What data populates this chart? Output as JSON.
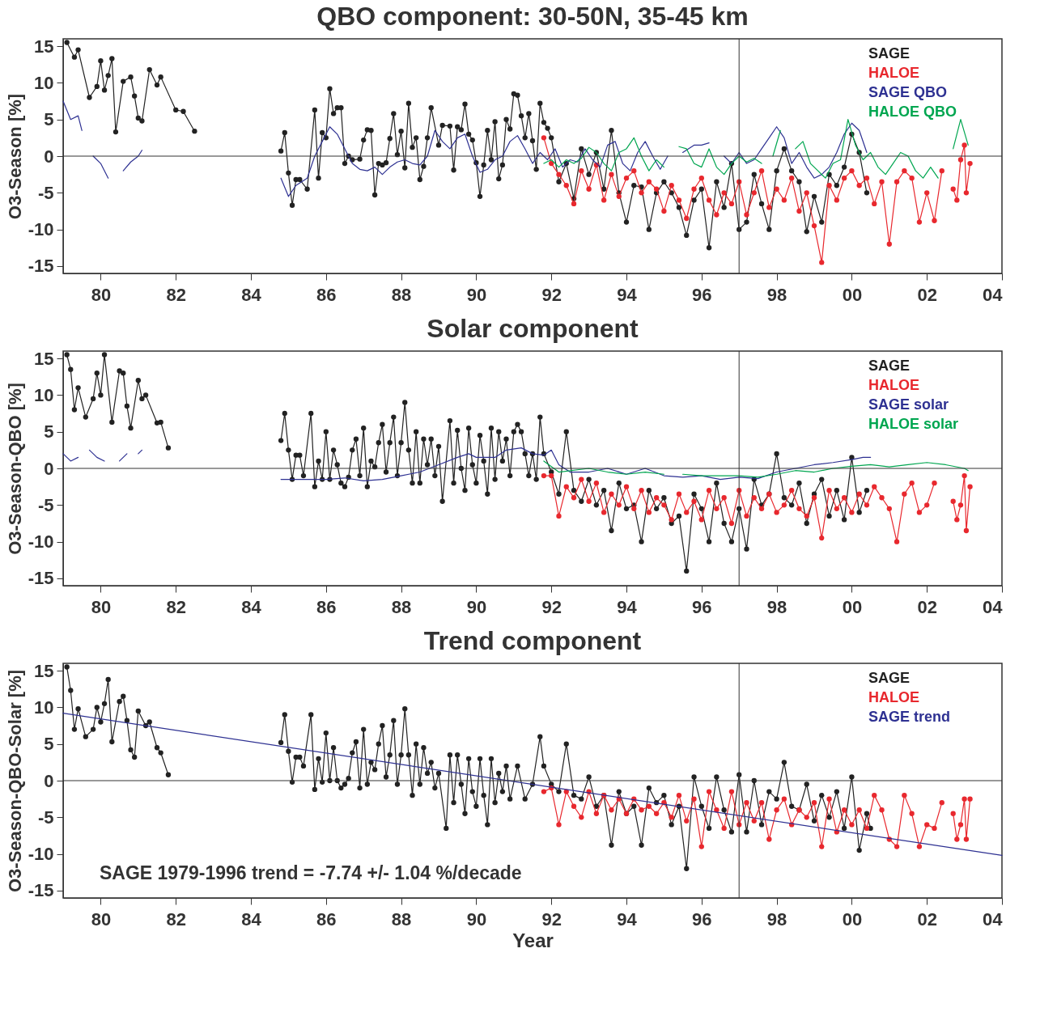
{
  "chart_data": [
    {
      "type": "line",
      "title": "QBO component: 30-50N, 35-45 km",
      "ylabel": "O3-Season [%]",
      "xlim": [
        1979,
        2004
      ],
      "xticks": [
        {
          "value": 1980,
          "label": "80"
        },
        {
          "value": 1982,
          "label": "82"
        },
        {
          "value": 1984,
          "label": "84"
        },
        {
          "value": 1986,
          "label": "86"
        },
        {
          "value": 1988,
          "label": "88"
        },
        {
          "value": 1990,
          "label": "90"
        },
        {
          "value": 1992,
          "label": "92"
        },
        {
          "value": 1994,
          "label": "94"
        },
        {
          "value": 1996,
          "label": "96"
        },
        {
          "value": 1998,
          "label": "98"
        },
        {
          "value": 2000,
          "label": "00"
        },
        {
          "value": 2002,
          "label": "02"
        },
        {
          "value": 2004,
          "label": "04"
        }
      ],
      "ylim": [
        -16,
        16
      ],
      "yticks": [
        -15,
        -10,
        -5,
        0,
        5,
        10,
        15
      ],
      "legend": "top right",
      "marker": "circle",
      "ref_lines": [
        {
          "axis": "y",
          "value": 0
        },
        {
          "axis": "x",
          "value": 1997
        }
      ],
      "series": [
        {
          "name": "SAGE",
          "color": "#222222",
          "x": [
            1979.1,
            1979.3,
            1979.4,
            1979.7,
            1979.9,
            1980.0,
            1980.1,
            1980.2,
            1980.3,
            1980.4,
            1980.6,
            1980.8,
            1980.9,
            1981.0,
            1981.1,
            1981.3,
            1981.5,
            1981.6,
            1982.0,
            1982.2,
            1982.5,
            1983.5,
            1984.8,
            1984.9,
            1985.0,
            1985.1,
            1985.2,
            1985.3,
            1985.5,
            1985.7,
            1985.8,
            1985.9,
            1986.0,
            1986.1,
            1986.2,
            1986.3,
            1986.4,
            1986.5,
            1986.6,
            1986.7,
            1986.9,
            1987.0,
            1987.1,
            1987.2,
            1987.3,
            1987.4,
            1987.5,
            1987.6,
            1987.7,
            1987.8,
            1987.9,
            1988.0,
            1988.1,
            1988.2,
            1988.3,
            1988.4,
            1988.5,
            1988.6,
            1988.7,
            1988.8,
            1989.0,
            1989.1,
            1989.3,
            1989.4,
            1989.5,
            1989.6,
            1989.7,
            1989.8,
            1989.9,
            1990.0,
            1990.1,
            1990.2,
            1990.3,
            1990.4,
            1990.5,
            1990.6,
            1990.7,
            1990.8,
            1990.9,
            1991.0,
            1991.1,
            1991.2,
            1991.3,
            1991.4,
            1991.5,
            1991.6,
            1991.7,
            1991.8,
            1991.9,
            1992.0,
            1992.2,
            1992.4,
            1992.6,
            1992.8,
            1993.0,
            1993.2,
            1993.4,
            1993.6,
            1993.8,
            1994.0,
            1994.2,
            1994.4,
            1994.6,
            1994.8,
            1995.0,
            1995.2,
            1995.4,
            1995.6,
            1995.8,
            1996.0,
            1996.2,
            1996.4,
            1996.6,
            1996.8,
            1997.0,
            1997.2,
            1997.4,
            1997.6,
            1997.8,
            1998.0,
            1998.2,
            1998.4,
            1998.6,
            1998.8,
            1999.0,
            1999.2,
            1999.4,
            1999.6,
            1999.8,
            2000.0,
            2000.2,
            2000.4
          ],
          "values": [
            15.5,
            13.5,
            14.5,
            8,
            9.5,
            13,
            9,
            11,
            13.3,
            3.3,
            10.2,
            10.8,
            8.2,
            5.2,
            4.8,
            11.8,
            9.7,
            10.8,
            6.3,
            6.1,
            3.4,
            null,
            0.7,
            3.2,
            -2.3,
            -6.7,
            -3.2,
            -3.2,
            -4.5,
            6.3,
            -3,
            3.2,
            2.5,
            9.2,
            5.8,
            6.6,
            6.6,
            -1,
            0,
            -0.5,
            -0.4,
            2.2,
            3.6,
            3.5,
            -5.3,
            -1,
            -1.2,
            -0.9,
            2.4,
            5.8,
            0.2,
            3.4,
            -1.6,
            7.2,
            1.2,
            2.5,
            -3.2,
            -1.4,
            2.5,
            6.6,
            1.5,
            4.2,
            4.1,
            -1.9,
            4,
            3.6,
            7.1,
            3,
            2.2,
            -0.9,
            -5.5,
            -1.2,
            3.5,
            -0.5,
            4.7,
            -3.1,
            -1.2,
            5,
            3.7,
            8.5,
            8.3,
            5.5,
            2.5,
            5.8,
            2.1,
            -1.8,
            7.2,
            4.6,
            3.8,
            2.5,
            -3.5,
            -1,
            -5.8,
            1,
            -2.5,
            0.5,
            -4.5,
            3.5,
            -5,
            -9,
            -4,
            -4.2,
            -10,
            -5,
            -3.5,
            -5,
            -7,
            -10.8,
            -6,
            -4.5,
            -12.5,
            -3.5,
            -7,
            -1,
            -10,
            -9,
            -2.5,
            -6.5,
            -10,
            -2,
            1,
            -2,
            -3.5,
            -10.3,
            -5.5,
            -9,
            -2.5,
            -4,
            -1.5,
            3,
            0.5,
            -5
          ]
        },
        {
          "name": "HALOE",
          "color": "#e8282e",
          "x": [
            1991.8,
            1992.0,
            1992.2,
            1992.4,
            1992.6,
            1992.8,
            1993.0,
            1993.2,
            1993.4,
            1993.6,
            1993.8,
            1994.0,
            1994.2,
            1994.4,
            1994.6,
            1994.8,
            1995.0,
            1995.2,
            1995.4,
            1995.6,
            1995.8,
            1996.0,
            1996.2,
            1996.4,
            1996.6,
            1996.8,
            1997.0,
            1997.2,
            1997.4,
            1997.6,
            1997.8,
            1998.0,
            1998.2,
            1998.4,
            1998.6,
            1998.8,
            1999.0,
            1999.2,
            1999.4,
            1999.6,
            1999.8,
            2000.0,
            2000.2,
            2000.4,
            2000.6,
            2000.8,
            2001.0,
            2001.2,
            2001.4,
            2001.6,
            2001.8,
            2002.0,
            2002.2,
            2002.4,
            2002.6,
            2002.7,
            2002.8,
            2002.9,
            2003.0,
            2003.05,
            2003.15
          ],
          "values": [
            2.5,
            -1,
            -2.5,
            -4,
            -6.5,
            -2,
            -4.5,
            -1.2,
            -6,
            -2.5,
            -5.5,
            -3,
            -2,
            -5,
            -3.5,
            -4.5,
            -7.5,
            -4,
            -6,
            -8.5,
            -4.5,
            -3,
            -6,
            -8,
            -5,
            -6.5,
            -3.5,
            -8,
            -5,
            -2,
            -7,
            -4.5,
            -6,
            -3,
            -7.5,
            -5,
            -9.5,
            -14.5,
            -4,
            -6,
            -3,
            -2,
            -4,
            -3,
            -6.5,
            -3.5,
            -12,
            -3.5,
            -2,
            -3,
            -9,
            -5,
            -8.8,
            -2,
            null,
            -4.5,
            -6,
            -0.5,
            1.5,
            -5,
            -1
          ]
        },
        {
          "name": "SAGE QBO",
          "color": "#2e3192",
          "marker": "none",
          "x": [
            1979.0,
            1979.2,
            1979.4,
            1979.5,
            1979.7,
            1979.8,
            1980.0,
            1980.2,
            1980.4,
            1980.6,
            1980.8,
            1981.0,
            1981.1,
            1983.0,
            1984.8,
            1985.0,
            1985.2,
            1985.5,
            1985.7,
            1985.9,
            1986.1,
            1986.3,
            1986.5,
            1986.7,
            1986.9,
            1987.1,
            1987.3,
            1987.5,
            1987.7,
            1987.9,
            1988.1,
            1988.3,
            1988.5,
            1988.7,
            1988.9,
            1989.1,
            1989.3,
            1989.5,
            1989.7,
            1989.9,
            1990.1,
            1990.3,
            1990.5,
            1990.7,
            1990.9,
            1991.1,
            1991.3,
            1991.5,
            1991.7,
            1991.9,
            1992.1,
            1992.3,
            1992.5,
            1992.7,
            1992.9,
            1993.1,
            1993.3,
            1993.5,
            1993.7,
            1993.9,
            1994.1,
            1994.3,
            1994.5,
            1994.7,
            1994.9,
            1995.1,
            1995.3,
            1995.5,
            1995.8,
            1996.0,
            1996.2,
            1996.4,
            1996.6,
            1996.8,
            1997.0,
            1997.2,
            1997.4,
            1997.6,
            1997.8,
            1998.0,
            1998.2,
            1998.4,
            1998.6,
            1998.8,
            1999.0,
            1999.2,
            1999.4,
            1999.6,
            1999.8,
            2000.0,
            2000.2,
            2000.4
          ],
          "values": [
            7.5,
            5,
            5.5,
            3.5,
            null,
            0,
            -1,
            -3,
            null,
            -2,
            -0.8,
            0,
            0.8,
            null,
            -3,
            -5.5,
            -4,
            -3,
            0,
            2,
            4,
            3,
            1,
            -1,
            -1.8,
            -2,
            -1.5,
            -2.5,
            -1.5,
            -0.8,
            -0.5,
            -1,
            -1.2,
            0,
            3.5,
            2,
            1,
            2.5,
            3,
            0,
            -2.2,
            -1.8,
            -0.5,
            0,
            2,
            2.8,
            1,
            -1,
            0.5,
            -0.5,
            1,
            -1.5,
            -0.5,
            -0.8,
            1,
            -0.5,
            -1.5,
            1.5,
            2,
            -1,
            -2,
            0.5,
            2,
            0,
            -1.8,
            0,
            null,
            0.5,
            1.5,
            1.5,
            1.8,
            null,
            0,
            -1,
            0.5,
            -1,
            -0.5,
            1,
            2.5,
            4,
            2.5,
            -1,
            0.5,
            -1.5,
            -3,
            -2.5,
            -1.5,
            0.5,
            3,
            4.5,
            3.5,
            0.5
          ]
        },
        {
          "name": "HALOE QBO",
          "color": "#00a650",
          "marker": "none",
          "x": [
            1991.8,
            1992.0,
            1992.2,
            1992.4,
            1992.6,
            1992.8,
            1993.0,
            1993.2,
            1993.4,
            1993.6,
            1993.8,
            1994.0,
            1994.2,
            1994.4,
            1994.6,
            1994.8,
            1995.0,
            1995.2,
            1995.4,
            1995.6,
            1995.8,
            1996.0,
            1996.2,
            1996.4,
            1996.6,
            1996.8,
            1997.0,
            1997.2,
            1997.4,
            1997.6,
            1997.7,
            1997.9,
            1998.1,
            1998.3,
            1998.5,
            1998.7,
            1998.9,
            1999.1,
            1999.3,
            1999.5,
            1999.7,
            1999.9,
            2000.1,
            2000.3,
            2000.5,
            2000.7,
            2000.9,
            2001.1,
            2001.3,
            2001.5,
            2001.7,
            2001.9,
            2002.1,
            2002.3,
            2002.5,
            2002.7,
            2002.9,
            2003.1
          ],
          "values": [
            -1,
            -0.5,
            -1.5,
            -0.5,
            -1,
            -0.3,
            1.2,
            0.5,
            -1,
            -2,
            0.5,
            1,
            2.5,
            0,
            -2,
            -0.5,
            -1.5,
            null,
            1.3,
            1,
            -1,
            -1.5,
            1,
            -1.5,
            -2.5,
            -1,
            0,
            -0.8,
            -0.3,
            -1,
            null,
            0,
            3.5,
            null,
            1,
            2,
            -1,
            -2,
            -3,
            -1,
            -0.5,
            5,
            1.5,
            -0.5,
            0.5,
            -1.5,
            -2.5,
            -1,
            0.5,
            0,
            -2,
            -3,
            -1.5,
            -3,
            null,
            1,
            5,
            1.5
          ]
        }
      ]
    },
    {
      "type": "line",
      "title": "Solar component",
      "ylabel": "O3-Season-QBO [%]",
      "xlim": [
        1979,
        2004
      ],
      "xticks": [
        {
          "value": 1980,
          "label": "80"
        },
        {
          "value": 1982,
          "label": "82"
        },
        {
          "value": 1984,
          "label": "84"
        },
        {
          "value": 1986,
          "label": "86"
        },
        {
          "value": 1988,
          "label": "88"
        },
        {
          "value": 1990,
          "label": "90"
        },
        {
          "value": 1992,
          "label": "92"
        },
        {
          "value": 1994,
          "label": "94"
        },
        {
          "value": 1996,
          "label": "96"
        },
        {
          "value": 1998,
          "label": "98"
        },
        {
          "value": 2000,
          "label": "00"
        },
        {
          "value": 2002,
          "label": "02"
        },
        {
          "value": 2004,
          "label": "04"
        }
      ],
      "ylim": [
        -16,
        16
      ],
      "yticks": [
        -15,
        -10,
        -5,
        0,
        5,
        10,
        15
      ],
      "legend": "top right",
      "marker": "circle",
      "ref_lines": [
        {
          "axis": "y",
          "value": 0
        },
        {
          "axis": "x",
          "value": 1997
        }
      ],
      "series": [
        {
          "name": "SAGE",
          "color": "#222222",
          "x": [
            1979.1,
            1979.2,
            1979.3,
            1979.4,
            1979.6,
            1979.8,
            1979.9,
            1980.0,
            1980.1,
            1980.3,
            1980.5,
            1980.6,
            1980.7,
            1980.8,
            1981.0,
            1981.1,
            1981.2,
            1981.5,
            1981.6,
            1981.8,
            1983.0,
            1984.8,
            1984.9,
            1985.0,
            1985.1,
            1985.2,
            1985.3,
            1985.4,
            1985.6,
            1985.7,
            1985.8,
            1985.9,
            1986.0,
            1986.1,
            1986.2,
            1986.3,
            1986.4,
            1986.5,
            1986.6,
            1986.7,
            1986.8,
            1986.9,
            1987.0,
            1987.1,
            1987.2,
            1987.3,
            1987.4,
            1987.5,
            1987.6,
            1987.7,
            1987.8,
            1987.9,
            1988.0,
            1988.1,
            1988.2,
            1988.3,
            1988.4,
            1988.5,
            1988.6,
            1988.7,
            1988.8,
            1988.9,
            1989.0,
            1989.1,
            1989.3,
            1989.4,
            1989.5,
            1989.6,
            1989.7,
            1989.8,
            1989.9,
            1990.0,
            1990.1,
            1990.2,
            1990.3,
            1990.4,
            1990.5,
            1990.6,
            1990.7,
            1990.8,
            1990.9,
            1991.0,
            1991.1,
            1991.2,
            1991.3,
            1991.4,
            1991.5,
            1991.6,
            1991.7,
            1991.8,
            1992.0,
            1992.2,
            1992.4,
            1992.6,
            1992.8,
            1993.0,
            1993.2,
            1993.4,
            1993.6,
            1993.8,
            1994.0,
            1994.2,
            1994.4,
            1994.6,
            1994.8,
            1995.0,
            1995.2,
            1995.4,
            1995.6,
            1995.8,
            1996.0,
            1996.2,
            1996.4,
            1996.6,
            1996.8,
            1997.0,
            1997.2,
            1997.4,
            1997.6,
            1997.8,
            1998.0,
            1998.2,
            1998.4,
            1998.6,
            1998.8,
            1999.0,
            1999.2,
            1999.4,
            1999.6,
            1999.8,
            2000.0,
            2000.2,
            2000.4
          ],
          "values": [
            15.5,
            13.5,
            8,
            11,
            7,
            9.5,
            13,
            10,
            15.5,
            6.3,
            13.3,
            13,
            8.5,
            5.5,
            12,
            9.5,
            10,
            6.2,
            6.3,
            2.8,
            null,
            3.8,
            7.5,
            2.5,
            -1.5,
            1.8,
            1.8,
            -1,
            7.5,
            -2.5,
            1,
            -1.5,
            5,
            -1.5,
            2.5,
            0.5,
            -2,
            -2.5,
            -1.2,
            2.5,
            4,
            -1,
            5.5,
            -2.5,
            1,
            0.2,
            3.5,
            6,
            -0.5,
            3.5,
            7,
            -1,
            3.5,
            9,
            2.5,
            -2,
            5,
            -2,
            4,
            0.5,
            4,
            -1,
            3,
            -4.5,
            6.5,
            -2,
            5.2,
            0,
            -3,
            5.5,
            0.5,
            -2,
            4.5,
            1,
            -3.5,
            5.5,
            -1.5,
            5,
            1,
            4,
            -1,
            5,
            6,
            5,
            2,
            -1,
            2,
            -1.5,
            7,
            2,
            -0.5,
            -3.5,
            5,
            -3,
            -4.5,
            -1.5,
            -5,
            -3,
            -8.5,
            -2,
            -5.5,
            -5,
            -10,
            -3,
            -5.5,
            -4,
            -7.5,
            -6.5,
            -14,
            -3.5,
            -5.5,
            -10,
            -2,
            -7.5,
            -10,
            -5.5,
            -11,
            -1.5,
            -5,
            -3.5,
            2,
            -4,
            -5,
            -2,
            -7.5,
            -3.5,
            -1.5,
            -6.5,
            -3,
            -7,
            1.5,
            -6,
            -3
          ]
        },
        {
          "name": "HALOE",
          "color": "#e8282e",
          "x": [
            1991.8,
            1992.0,
            1992.2,
            1992.4,
            1992.6,
            1992.8,
            1993.0,
            1993.2,
            1993.4,
            1993.6,
            1993.8,
            1994.0,
            1994.2,
            1994.4,
            1994.6,
            1994.8,
            1995.0,
            1995.2,
            1995.4,
            1995.6,
            1995.8,
            1996.0,
            1996.2,
            1996.4,
            1996.6,
            1996.8,
            1997.0,
            1997.2,
            1997.4,
            1997.6,
            1997.8,
            1998.0,
            1998.2,
            1998.4,
            1998.6,
            1998.8,
            1999.0,
            1999.2,
            1999.4,
            1999.6,
            1999.8,
            2000.0,
            2000.2,
            2000.4,
            2000.6,
            2000.8,
            2001.0,
            2001.2,
            2001.4,
            2001.6,
            2001.8,
            2002.0,
            2002.2,
            2002.5,
            2002.7,
            2002.8,
            2002.9,
            2003.0,
            2003.05,
            2003.15
          ],
          "values": [
            -1,
            -1,
            -6.5,
            -2.5,
            -4,
            -1.5,
            -4.5,
            -2,
            -6,
            -3.5,
            -5,
            -2.5,
            -5.5,
            -3,
            -6,
            -4,
            -5,
            -7,
            -3.5,
            -6,
            -4.5,
            -7,
            -3,
            -5.5,
            -4,
            -7.5,
            -3,
            -6.5,
            -4,
            -5.5,
            -3.5,
            -6,
            -5,
            -3,
            -5.5,
            -6.5,
            -4,
            -9.5,
            -3,
            -5.5,
            -4,
            -6,
            -3.5,
            -5,
            -2.5,
            -4,
            -5.5,
            -10,
            -3.5,
            -2,
            -6,
            -5,
            -2,
            null,
            -4.5,
            -7,
            -5,
            -1,
            -8.5,
            -2.5
          ]
        },
        {
          "name": "SAGE solar",
          "color": "#2e3192",
          "marker": "none",
          "x": [
            1979.0,
            1979.2,
            1979.4,
            1979.5,
            1979.7,
            1979.9,
            1980.1,
            1980.3,
            1980.5,
            1980.7,
            1980.8,
            1981.0,
            1981.1,
            1983.0,
            1984.8,
            1985.5,
            1986.0,
            1986.5,
            1987.0,
            1987.5,
            1988.0,
            1988.5,
            1989.0,
            1989.5,
            1989.8,
            1990.0,
            1990.5,
            1990.8,
            1991.2,
            1991.5,
            1991.8,
            1992.0,
            1992.2,
            1992.5,
            1993.0,
            1993.5,
            1994.0,
            1994.5,
            1995.0,
            1995.5,
            1996.0,
            1996.5,
            1997.0,
            1997.5,
            1998.0,
            1998.5,
            1999.0,
            1999.5,
            2000.0,
            2000.3,
            2000.5
          ],
          "values": [
            2,
            1,
            1.5,
            null,
            2.5,
            1.5,
            1,
            null,
            1,
            2,
            null,
            2,
            2.5,
            null,
            -1.5,
            -1.5,
            -1.5,
            -1.3,
            -1.7,
            -1.5,
            -1,
            -0.5,
            0.5,
            1.5,
            2,
            1.5,
            1.5,
            2.5,
            2.8,
            2,
            1.8,
            2.5,
            0.5,
            -0.5,
            -0.5,
            0,
            -0.8,
            0,
            -1,
            -1.2,
            -1,
            -1.5,
            -1.2,
            -1.4,
            -0.5,
            0,
            0.5,
            0.8,
            1.2,
            1.5,
            1.5
          ]
        },
        {
          "name": "HALOE solar",
          "color": "#00a650",
          "marker": "none",
          "x": [
            1991.8,
            1992.2,
            1993.0,
            1993.5,
            1994.0,
            1994.5,
            1995.0,
            1995.3,
            1995.5,
            1996.0,
            1996.5,
            1997.0,
            1997.5,
            1998.0,
            1998.5,
            1999.0,
            1999.5,
            2000.0,
            2000.5,
            2001.0,
            2001.5,
            2002.0,
            2002.5,
            2003.0,
            2003.1
          ],
          "values": [
            1,
            -0.5,
            0,
            -0.5,
            -0.8,
            -0.5,
            -0.8,
            null,
            -0.8,
            -1,
            -1,
            -1,
            -1.2,
            -0.8,
            -0.3,
            -0.5,
            0,
            0.3,
            0.5,
            0.2,
            0.5,
            0.8,
            0.5,
            0,
            -0.3
          ]
        }
      ]
    },
    {
      "type": "line",
      "title": "Trend component",
      "xlabel": "Year",
      "ylabel": "O3-Season-QBO-Solar [%]",
      "xlim": [
        1979,
        2004
      ],
      "xticks": [
        {
          "value": 1980,
          "label": "80"
        },
        {
          "value": 1982,
          "label": "82"
        },
        {
          "value": 1984,
          "label": "84"
        },
        {
          "value": 1986,
          "label": "86"
        },
        {
          "value": 1988,
          "label": "88"
        },
        {
          "value": 1990,
          "label": "90"
        },
        {
          "value": 1992,
          "label": "92"
        },
        {
          "value": 1994,
          "label": "94"
        },
        {
          "value": 1996,
          "label": "96"
        },
        {
          "value": 1998,
          "label": "98"
        },
        {
          "value": 2000,
          "label": "00"
        },
        {
          "value": 2002,
          "label": "02"
        },
        {
          "value": 2004,
          "label": "04"
        }
      ],
      "ylim": [
        -16,
        16
      ],
      "yticks": [
        -15,
        -10,
        -5,
        0,
        5,
        10,
        15
      ],
      "legend": "top right",
      "marker": "circle",
      "ref_lines": [
        {
          "axis": "y",
          "value": 0
        },
        {
          "axis": "x",
          "value": 1997
        }
      ],
      "annotations": [
        "SAGE 1979-1996 trend =  -7.74 +/-  1.04 %/decade"
      ],
      "series": [
        {
          "name": "SAGE",
          "color": "#222222",
          "x": [
            1979.1,
            1979.2,
            1979.3,
            1979.4,
            1979.6,
            1979.8,
            1979.9,
            1980.0,
            1980.1,
            1980.2,
            1980.3,
            1980.5,
            1980.6,
            1980.7,
            1980.8,
            1980.9,
            1981.0,
            1981.2,
            1981.3,
            1981.5,
            1981.6,
            1981.8,
            1983.0,
            1984.8,
            1984.9,
            1985.0,
            1985.1,
            1985.2,
            1985.3,
            1985.4,
            1985.6,
            1985.7,
            1985.8,
            1985.9,
            1986.0,
            1986.1,
            1986.2,
            1986.3,
            1986.4,
            1986.5,
            1986.6,
            1986.7,
            1986.8,
            1986.9,
            1987.0,
            1987.1,
            1987.2,
            1987.3,
            1987.4,
            1987.5,
            1987.6,
            1987.7,
            1987.8,
            1987.9,
            1988.0,
            1988.1,
            1988.2,
            1988.3,
            1988.4,
            1988.5,
            1988.6,
            1988.7,
            1988.8,
            1988.9,
            1989.0,
            1989.2,
            1989.3,
            1989.4,
            1989.5,
            1989.6,
            1989.7,
            1989.8,
            1989.9,
            1990.0,
            1990.1,
            1990.2,
            1990.3,
            1990.4,
            1990.5,
            1990.6,
            1990.7,
            1990.8,
            1990.9,
            1991.1,
            1991.3,
            1991.5,
            1991.7,
            1991.8,
            1992.0,
            1992.2,
            1992.4,
            1992.6,
            1992.8,
            1993.0,
            1993.2,
            1993.4,
            1993.6,
            1993.8,
            1994.0,
            1994.2,
            1994.4,
            1994.6,
            1994.8,
            1995.0,
            1995.2,
            1995.4,
            1995.6,
            1995.8,
            1996.0,
            1996.2,
            1996.4,
            1996.6,
            1996.8,
            1997.0,
            1997.2,
            1997.4,
            1997.6,
            1997.8,
            1998.0,
            1998.2,
            1998.4,
            1998.6,
            1998.8,
            1999.0,
            1999.2,
            1999.4,
            1999.6,
            1999.8,
            2000.0,
            2000.2,
            2000.4,
            2000.5
          ],
          "values": [
            15.5,
            12.3,
            7,
            9.8,
            6,
            7,
            10,
            8,
            10.5,
            13.8,
            5.3,
            10.8,
            11.5,
            8.2,
            4.2,
            3.2,
            9.5,
            7.5,
            8,
            4.5,
            3.8,
            0.8,
            null,
            5.2,
            9,
            4,
            -0.2,
            3.2,
            3.2,
            2,
            9,
            -1.2,
            3,
            -0.2,
            6.5,
            0,
            4.5,
            0,
            -1,
            -0.5,
            0.3,
            3.8,
            5.3,
            -1,
            7,
            -0.5,
            2.5,
            1.5,
            5,
            7.5,
            0.5,
            3.5,
            8.2,
            -0.5,
            3.5,
            9.8,
            3.5,
            -2,
            5,
            -0.5,
            4.5,
            1,
            2.5,
            -1,
            1,
            -6.5,
            3.5,
            -3,
            3.5,
            -0.5,
            -4.5,
            3,
            -1.5,
            -3.5,
            3,
            -2,
            -6,
            3,
            -3,
            1,
            -1.5,
            2,
            -2.5,
            2,
            -2.5,
            -0.5,
            6,
            2,
            -0.5,
            -1.5,
            5,
            -2,
            -2.5,
            0.5,
            -3.5,
            -2,
            -8.8,
            -1.5,
            -4.5,
            -3.5,
            -8.8,
            -1,
            -3,
            -2,
            -6,
            -3.5,
            -12,
            0.5,
            -3.5,
            -6.5,
            0.5,
            -4,
            -7,
            0.8,
            -7,
            0,
            -6,
            -1.5,
            -2.5,
            2.5,
            -3.5,
            -4,
            -0.5,
            -5.5,
            -2,
            -5,
            -1.5,
            -6.5,
            0.5,
            -9.5,
            -4.5,
            -6.5
          ]
        },
        {
          "name": "HALOE",
          "color": "#e8282e",
          "x": [
            1991.8,
            1992.0,
            1992.2,
            1992.4,
            1992.6,
            1992.8,
            1993.0,
            1993.2,
            1993.4,
            1993.6,
            1993.8,
            1994.0,
            1994.2,
            1994.4,
            1994.6,
            1994.8,
            1995.0,
            1995.2,
            1995.4,
            1995.6,
            1995.8,
            1996.0,
            1996.2,
            1996.4,
            1996.6,
            1996.8,
            1997.0,
            1997.2,
            1997.4,
            1997.6,
            1997.8,
            1998.0,
            1998.2,
            1998.4,
            1998.6,
            1998.8,
            1999.0,
            1999.2,
            1999.4,
            1999.6,
            1999.8,
            2000.0,
            2000.2,
            2000.4,
            2000.6,
            2000.8,
            2001.0,
            2001.2,
            2001.4,
            2001.6,
            2001.8,
            2002.0,
            2002.2,
            2002.4,
            2002.5,
            2002.7,
            2002.8,
            2002.9,
            2003.0,
            2003.05,
            2003.15
          ],
          "values": [
            -1.5,
            -1,
            -6,
            -1.5,
            -3.5,
            -5,
            -1.5,
            -4.5,
            -2,
            -4,
            -2.5,
            -4.5,
            -2.5,
            -4,
            -3.5,
            -4.5,
            -3,
            -5,
            -2,
            -5.5,
            -2.5,
            -9,
            -1.5,
            -4,
            -6.5,
            -1.5,
            -6,
            -3,
            -5.5,
            -3,
            -8,
            -4,
            -2.5,
            -6,
            -4,
            -5,
            -3,
            -9,
            -2.5,
            -7,
            -4,
            -6,
            -4,
            -6.5,
            -2,
            -4,
            -8,
            -9,
            -2,
            -4.5,
            -9,
            -6,
            -6.5,
            -3,
            null,
            -4.5,
            -8,
            -6,
            -2.5,
            -8,
            -2.5
          ]
        },
        {
          "name": "SAGE trend",
          "color": "#2e3192",
          "marker": "none",
          "x": [
            1979,
            2004
          ],
          "values": [
            9.2,
            -10.2
          ]
        }
      ]
    }
  ]
}
